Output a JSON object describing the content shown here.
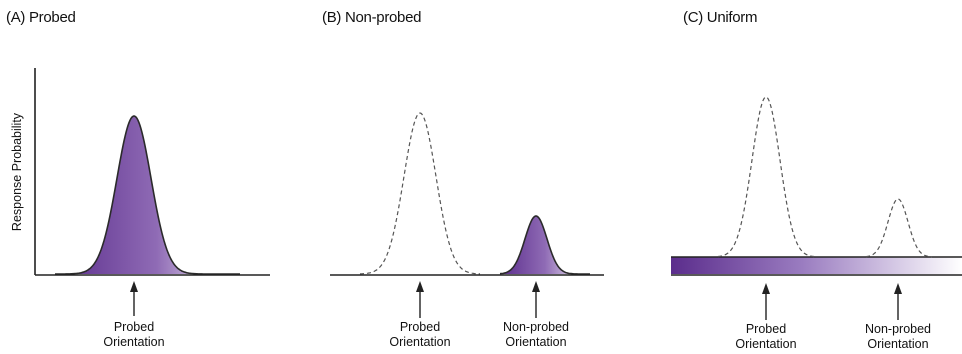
{
  "y_axis_label": "Response Probability",
  "panels": [
    {
      "title": "(A) Probed",
      "markers": [
        {
          "line1": "Probed",
          "line2": "Orientation"
        }
      ]
    },
    {
      "title": "(B) Non-probed",
      "markers": [
        {
          "line1": "Probed",
          "line2": "Orientation"
        },
        {
          "line1": "Non-probed",
          "line2": "Orientation"
        }
      ]
    },
    {
      "title": "(C) Uniform",
      "markers": [
        {
          "line1": "Probed",
          "line2": "Orientation"
        },
        {
          "line1": "Non-probed",
          "line2": "Orientation"
        }
      ]
    }
  ],
  "colors": {
    "fill_dark": "#5b2d8c",
    "fill_light": "#ffffff",
    "outline": "#2b2b2b",
    "dashed": "#555555"
  }
}
